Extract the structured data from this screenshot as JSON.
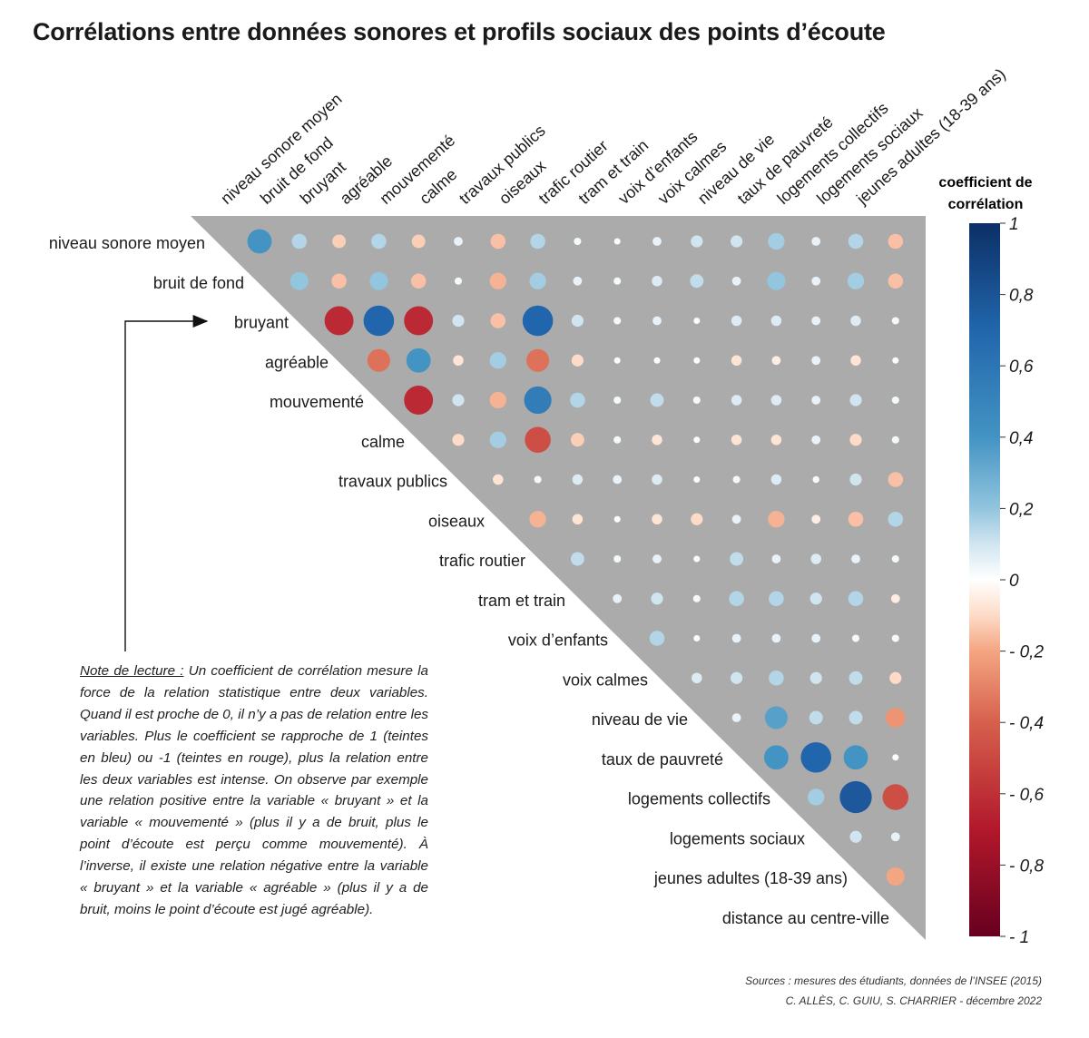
{
  "title": "Corrélations entre données sonores et profils sociaux des points d’écoute",
  "note": {
    "lead": "Note de lecture :",
    "text": " Un coefficient de corrélation mesure la force de la relation statistique entre deux variables. Quand il est proche de 0, il n’y a pas de relation entre les variables. Plus le coefficient se rapproche de 1 (teintes en bleu) ou -1 (teintes en rouge), plus la relation entre les deux variables est intense. On observe par exemple une relation positive entre la variable « bruyant » et la variable « mouvementé » (plus il y a de bruit, plus le point d’écoute est perçu comme mouvementé). À l’inverse, il existe une relation négative entre la variable « bruyant » et la variable « agréable » (plus il y a de bruit, moins le point d’écoute est jugé agréable)."
  },
  "sources": {
    "line1": "Sources : mesures des étudiants, données de l’INSEE (2015)",
    "line2": "C. ALLÈS, C. GUIU, S. CHARRIER - décembre 2022"
  },
  "colors": {
    "triangle": "#ababab",
    "positive": "#2166ac",
    "negative": "#b2182b",
    "neutral": "#ffffff"
  },
  "chart_data": {
    "type": "heatmap",
    "variables": [
      "niveau sonore moyen",
      "bruit de fond",
      "bruyant",
      "agréable",
      "mouvementé",
      "calme",
      "travaux publics",
      "oiseaux",
      "trafic routier",
      "tram et train",
      "voix d’enfants",
      "voix calmes",
      "niveau de vie",
      "taux de pauvreté",
      "logements collectifs",
      "logements sociaux",
      "jeunes adultes (18-39 ans)",
      "distance au centre-ville"
    ],
    "legend_title": [
      "coefficient de",
      "corrélation"
    ],
    "legend_ticks": [
      "1",
      "0,8",
      "0,6",
      "0,4",
      "0,2",
      "0",
      "- 0,2",
      "- 0,4",
      "- 0,6",
      "- 0,8",
      "- 1"
    ],
    "scale": [
      -1,
      1
    ],
    "correlations": [
      [
        0.6,
        0.3,
        -0.25,
        0.3,
        -0.25,
        0.1,
        -0.3,
        0.3,
        0.05,
        0.02,
        0.1,
        0.2,
        0.2,
        0.35,
        0.1,
        0.3,
        -0.3
      ],
      [
        0.4,
        -0.3,
        0.4,
        -0.3,
        0.05,
        -0.35,
        0.35,
        0.1,
        0.05,
        0.15,
        0.25,
        0.1,
        0.4,
        0.1,
        0.35,
        -0.3
      ],
      [
        -0.75,
        0.8,
        -0.75,
        0.2,
        -0.3,
        0.8,
        0.2,
        0.05,
        0.1,
        0.02,
        0.15,
        0.15,
        0.1,
        0.15,
        0.05
      ],
      [
        -0.55,
        0.6,
        -0.15,
        0.35,
        -0.55,
        -0.2,
        -0.02,
        0.02,
        0.02,
        -0.15,
        -0.1,
        0.1,
        -0.15,
        0.02
      ],
      [
        -0.75,
        0.2,
        -0.35,
        0.7,
        0.3,
        0.05,
        0.25,
        0.05,
        0.15,
        0.15,
        0.1,
        0.2,
        0.05
      ],
      [
        -0.2,
        0.35,
        -0.65,
        -0.25,
        0.05,
        -0.15,
        0.02,
        -0.15,
        -0.15,
        0.1,
        -0.2,
        0.05
      ],
      [
        -0.15,
        0.05,
        0.15,
        0.1,
        0.15,
        0.02,
        0.05,
        0.15,
        0.03,
        0.2,
        -0.3
      ],
      [
        -0.35,
        -0.15,
        0.02,
        -0.15,
        -0.2,
        0.1,
        -0.35,
        -0.1,
        -0.3,
        0.3
      ],
      [
        0.25,
        0.05,
        0.1,
        0.02,
        0.25,
        0.1,
        0.15,
        0.1,
        0.05
      ],
      [
        0.1,
        0.2,
        0.05,
        0.3,
        0.3,
        0.2,
        0.3,
        -0.1
      ],
      [
        0.3,
        0.02,
        0.1,
        0.1,
        0.1,
        0.05,
        0.05
      ],
      [
        0.15,
        0.2,
        0.3,
        0.2,
        0.25,
        -0.2
      ],
      [
        0.1,
        0.55,
        0.25,
        0.25,
        -0.45
      ],
      [
        0.6,
        0.8,
        0.6,
        0.02
      ],
      [
        0.35,
        0.85,
        -0.65
      ],
      [
        0.2,
        0.1
      ],
      [
        -0.4
      ]
    ]
  }
}
